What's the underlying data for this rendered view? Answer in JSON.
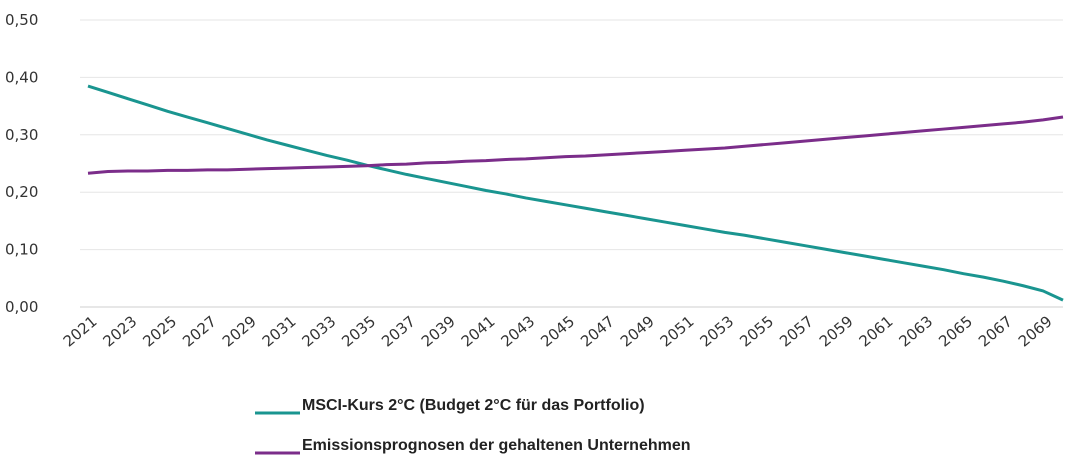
{
  "chart_data": {
    "type": "line",
    "x": [
      2021,
      2022,
      2023,
      2024,
      2025,
      2026,
      2027,
      2028,
      2029,
      2030,
      2031,
      2032,
      2033,
      2034,
      2035,
      2036,
      2037,
      2038,
      2039,
      2040,
      2041,
      2042,
      2043,
      2044,
      2045,
      2046,
      2047,
      2048,
      2049,
      2050,
      2051,
      2052,
      2053,
      2054,
      2055,
      2056,
      2057,
      2058,
      2059,
      2060,
      2061,
      2062,
      2063,
      2064,
      2065,
      2066,
      2067,
      2068,
      2069,
      2070
    ],
    "xlim": [
      2021,
      2070
    ],
    "xticks": [
      2021,
      2023,
      2025,
      2027,
      2029,
      2031,
      2033,
      2035,
      2037,
      2039,
      2041,
      2043,
      2045,
      2047,
      2049,
      2051,
      2053,
      2055,
      2057,
      2059,
      2061,
      2063,
      2065,
      2067,
      2069
    ],
    "ylim": [
      0,
      0.5
    ],
    "yticks": [
      {
        "value": 0,
        "label": "0,00"
      },
      {
        "value": 0.1,
        "label": "0,10"
      },
      {
        "value": 0.2,
        "label": "0,20"
      },
      {
        "value": 0.3,
        "label": "0,30"
      },
      {
        "value": 0.4,
        "label": "0,40"
      },
      {
        "value": 0.5,
        "label": "0,50"
      }
    ],
    "grid": true,
    "series": [
      {
        "name": "MSCI-Kurs 2°C (Budget 2°C für das Portfolio)",
        "color": "#1a9590",
        "values": [
          0.385,
          0.374,
          0.363,
          0.352,
          0.341,
          0.331,
          0.321,
          0.311,
          0.301,
          0.291,
          0.282,
          0.273,
          0.264,
          0.256,
          0.247,
          0.239,
          0.231,
          0.224,
          0.217,
          0.21,
          0.203,
          0.197,
          0.19,
          0.184,
          0.178,
          0.172,
          0.166,
          0.16,
          0.154,
          0.148,
          0.142,
          0.136,
          0.13,
          0.125,
          0.119,
          0.113,
          0.107,
          0.101,
          0.095,
          0.089,
          0.083,
          0.077,
          0.071,
          0.065,
          0.058,
          0.052,
          0.045,
          0.037,
          0.028,
          0.012
        ]
      },
      {
        "name": "Emissionsprognosen der gehaltenen Unternehmen",
        "color": "#7b2d8a",
        "values": [
          0.233,
          0.236,
          0.237,
          0.237,
          0.238,
          0.238,
          0.239,
          0.239,
          0.24,
          0.241,
          0.242,
          0.243,
          0.244,
          0.245,
          0.246,
          0.248,
          0.249,
          0.251,
          0.252,
          0.254,
          0.255,
          0.257,
          0.258,
          0.26,
          0.262,
          0.263,
          0.265,
          0.267,
          0.269,
          0.271,
          0.273,
          0.275,
          0.277,
          0.28,
          0.283,
          0.286,
          0.289,
          0.292,
          0.295,
          0.298,
          0.301,
          0.304,
          0.307,
          0.31,
          0.313,
          0.316,
          0.319,
          0.322,
          0.326,
          0.331
        ]
      }
    ]
  }
}
